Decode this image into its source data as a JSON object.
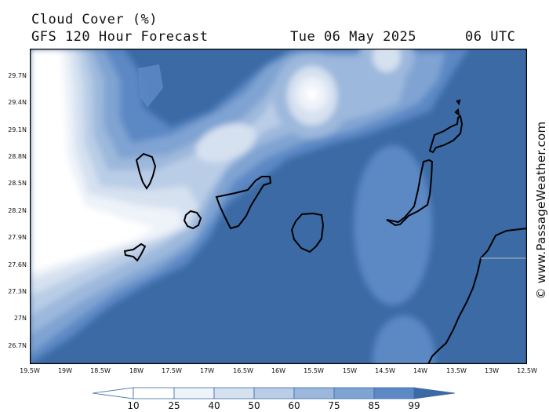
{
  "header": {
    "title": "Cloud Cover (%)",
    "subtitle": "GFS 120 Hour Forecast",
    "date": "Tue 06 May 2025",
    "time": "06 UTC"
  },
  "map": {
    "lat_labels": [
      "29.7N",
      "29.4N",
      "29.1N",
      "28.8N",
      "28.5N",
      "28.2N",
      "27.9N",
      "27.6N",
      "27.3N",
      "27N",
      "26.7N"
    ],
    "lon_labels": [
      "19.5W",
      "19W",
      "18.5W",
      "18W",
      "17.5W",
      "17W",
      "16.5W",
      "16W",
      "15.5W",
      "15W",
      "14.5W",
      "14W",
      "13.5W",
      "13W",
      "12.5W"
    ],
    "extent": {
      "lon_min": -19.5,
      "lon_max": -12.5,
      "lat_min": 26.5,
      "lat_max": 30.0
    },
    "islands": [
      "La Palma",
      "La Gomera",
      "El Hierro",
      "Tenerife",
      "Gran Canaria",
      "Fuerteventura",
      "Lanzarote",
      "Alegranza"
    ],
    "coast": "African coast (Morocco / Western Sahara)"
  },
  "legend": {
    "ticks": [
      "10",
      "25",
      "40",
      "50",
      "60",
      "75",
      "85",
      "99"
    ],
    "colors": [
      "#ffffff",
      "#eef2f9",
      "#d6e1f0",
      "#b9cde6",
      "#9cb8dc",
      "#7fa3d2",
      "#5c88c4",
      "#3b6aa5"
    ]
  },
  "colors": {
    "cloud_min": "#ffffff",
    "cloud_max": "#3b6aa5",
    "outline": "#000000"
  },
  "watermark": "© www.PassageWeather.com"
}
